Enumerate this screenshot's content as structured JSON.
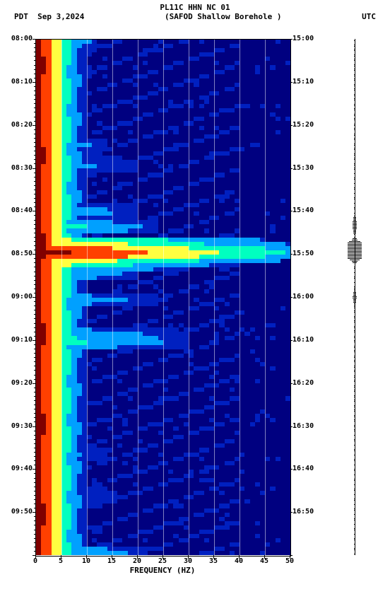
{
  "title_line1": "PL11C HHN NC 01",
  "title_left": "PDT",
  "title_date": "Sep 3,2024",
  "title_mid": "(SAFOD Shallow Borehole )",
  "title_right": "UTC",
  "x_axis_label": "FREQUENCY (HZ)",
  "left_time_labels": [
    "08:00",
    "08:10",
    "08:20",
    "08:30",
    "08:40",
    "08:50",
    "09:00",
    "09:10",
    "09:20",
    "09:30",
    "09:40",
    "09:50"
  ],
  "right_time_labels": [
    "15:00",
    "15:10",
    "15:20",
    "15:30",
    "15:40",
    "15:50",
    "16:00",
    "16:10",
    "16:20",
    "16:30",
    "16:40",
    "16:50"
  ],
  "x_ticks": [
    "0",
    "5",
    "10",
    "15",
    "20",
    "25",
    "30",
    "35",
    "40",
    "45",
    "50"
  ],
  "plot": {
    "type": "heatmap",
    "colormap": "jet",
    "background_color": "#00004d",
    "grid_color": "rgba(255,255,255,0.5)",
    "xlim": [
      0,
      50
    ],
    "time_rows": 120,
    "freq_bins": 50,
    "color_stops": {
      "vlow": "#000080",
      "low": "#0020c0",
      "med": "#00a0ff",
      "high": "#00ffc0",
      "vhigh": "#ffff40",
      "peak": "#ff4000",
      "max": "#800000"
    }
  },
  "seismo_events": [
    {
      "t": 0.36,
      "amp": 0.3
    },
    {
      "t": 0.405,
      "amp": 1.0
    },
    {
      "t": 0.41,
      "amp": 0.9
    },
    {
      "t": 0.415,
      "amp": 0.8
    },
    {
      "t": 0.5,
      "amp": 0.2
    }
  ]
}
